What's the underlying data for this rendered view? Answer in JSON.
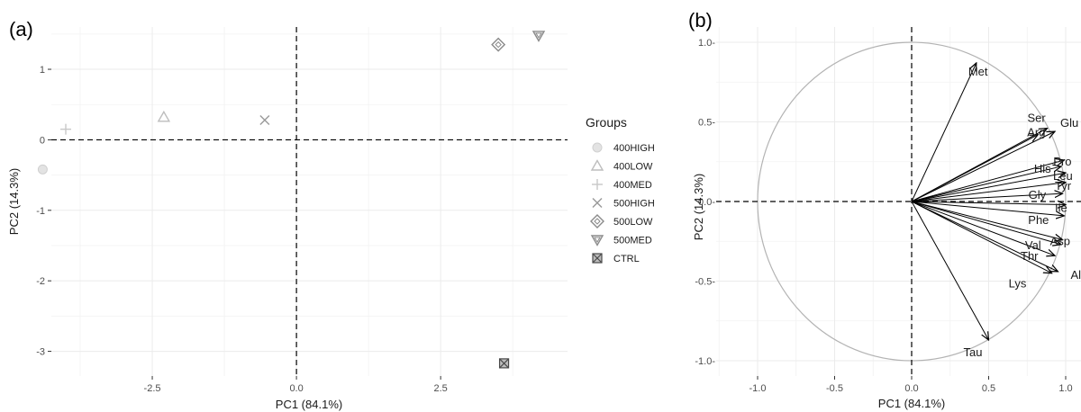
{
  "chart_data": [
    {
      "panel": "(a)",
      "type": "scatter",
      "xlabel": "PC1 (84.1%)",
      "ylabel": "PC2 (14.3%)",
      "xlim": [
        -4.25,
        4.7
      ],
      "ylim": [
        -3.35,
        1.6
      ],
      "xticks": [
        -2.5,
        0.0,
        2.5
      ],
      "xtick_labels": [
        "-2.5",
        "0.0",
        "2.5"
      ],
      "yticks": [
        1,
        0,
        -1,
        -2,
        -3
      ],
      "ytick_labels": [
        "1",
        "0",
        "-1",
        "-2",
        "-3"
      ],
      "grid": true,
      "legend_title": "Groups",
      "legend_position": "right",
      "series": [
        {
          "name": "400HIGH",
          "marker": "circle",
          "x": -4.4,
          "y": -0.42
        },
        {
          "name": "400LOW",
          "marker": "triangle-up",
          "x": -2.3,
          "y": 0.32
        },
        {
          "name": "400MED",
          "marker": "plus",
          "x": -4.0,
          "y": 0.15
        },
        {
          "name": "500HIGH",
          "marker": "cross",
          "x": -0.55,
          "y": 0.28
        },
        {
          "name": "500LOW",
          "marker": "diamond",
          "x": 3.5,
          "y": 1.35
        },
        {
          "name": "500MED",
          "marker": "triangle-down",
          "x": 4.2,
          "y": 1.48
        },
        {
          "name": "CTRL",
          "marker": "square-cross",
          "x": 3.6,
          "y": -3.17
        }
      ],
      "colors": {
        "light_marker": "#c4c4c4",
        "mid_marker": "#8f8f8f",
        "dark_marker": "#3a3a3a"
      }
    },
    {
      "panel": "(b)",
      "type": "scatter",
      "subtype": "correlation-circle",
      "xlabel": "PC1 (84.1%)",
      "ylabel": "PC2 (14.3%)",
      "xlim": [
        -1.1,
        1.1
      ],
      "ylim": [
        -1.1,
        1.1
      ],
      "xticks": [
        -1.0,
        -0.5,
        0.0,
        0.5,
        1.0
      ],
      "xtick_labels": [
        "-1.0",
        "-0.5",
        "0.0",
        "0.5",
        "1.0"
      ],
      "yticks": [
        1.0,
        0.5,
        0.0,
        -0.5,
        -1.0
      ],
      "ytick_labels": [
        "1.0-",
        "0.5-",
        "0.0-",
        "-0.5-",
        "-1.0-"
      ],
      "grid": true,
      "unit_circle": true,
      "variables": [
        {
          "name": "Met",
          "x": 0.42,
          "y": 0.87
        },
        {
          "name": "Ser",
          "x": 0.88,
          "y": 0.46
        },
        {
          "name": "Glu",
          "x": 0.93,
          "y": 0.44
        },
        {
          "name": "Arg",
          "x": 0.82,
          "y": 0.42
        },
        {
          "name": "Pro",
          "x": 0.99,
          "y": 0.26
        },
        {
          "name": "His",
          "x": 0.97,
          "y": 0.22
        },
        {
          "name": "Leu",
          "x": 1.0,
          "y": 0.18
        },
        {
          "name": "Tyr",
          "x": 1.0,
          "y": 0.12
        },
        {
          "name": "Gly",
          "x": 0.98,
          "y": 0.05
        },
        {
          "name": "Ile",
          "x": 1.0,
          "y": -0.02
        },
        {
          "name": "Phe",
          "x": 0.99,
          "y": -0.09
        },
        {
          "name": "Asp",
          "x": 0.98,
          "y": -0.24
        },
        {
          "name": "Val",
          "x": 0.97,
          "y": -0.27
        },
        {
          "name": "Thr",
          "x": 0.93,
          "y": -0.34
        },
        {
          "name": "Ala",
          "x": 0.95,
          "y": -0.44
        },
        {
          "name": "Lys",
          "x": 0.91,
          "y": -0.45
        },
        {
          "name": "Tau",
          "x": 0.5,
          "y": -0.87
        }
      ],
      "visible_labels": {
        "Met": "Met",
        "Ser": "Ser",
        "Glu": "Glu",
        "Arg": "Arg",
        "Pro": "Pro",
        "His": "His",
        "Leu": "Leu",
        "Tyr": "Tyr",
        "Gly": "Gly",
        "Ile": "Ile",
        "Phe": "Phe",
        "Asp": "Asp",
        "Val": "Val",
        "Thr": "Thr",
        "Ala": "Ala",
        "Lys": "Lys",
        "Tau": "Tau"
      },
      "colors": {
        "arrow": "#000000",
        "circle": "#b3b3b3"
      }
    }
  ]
}
